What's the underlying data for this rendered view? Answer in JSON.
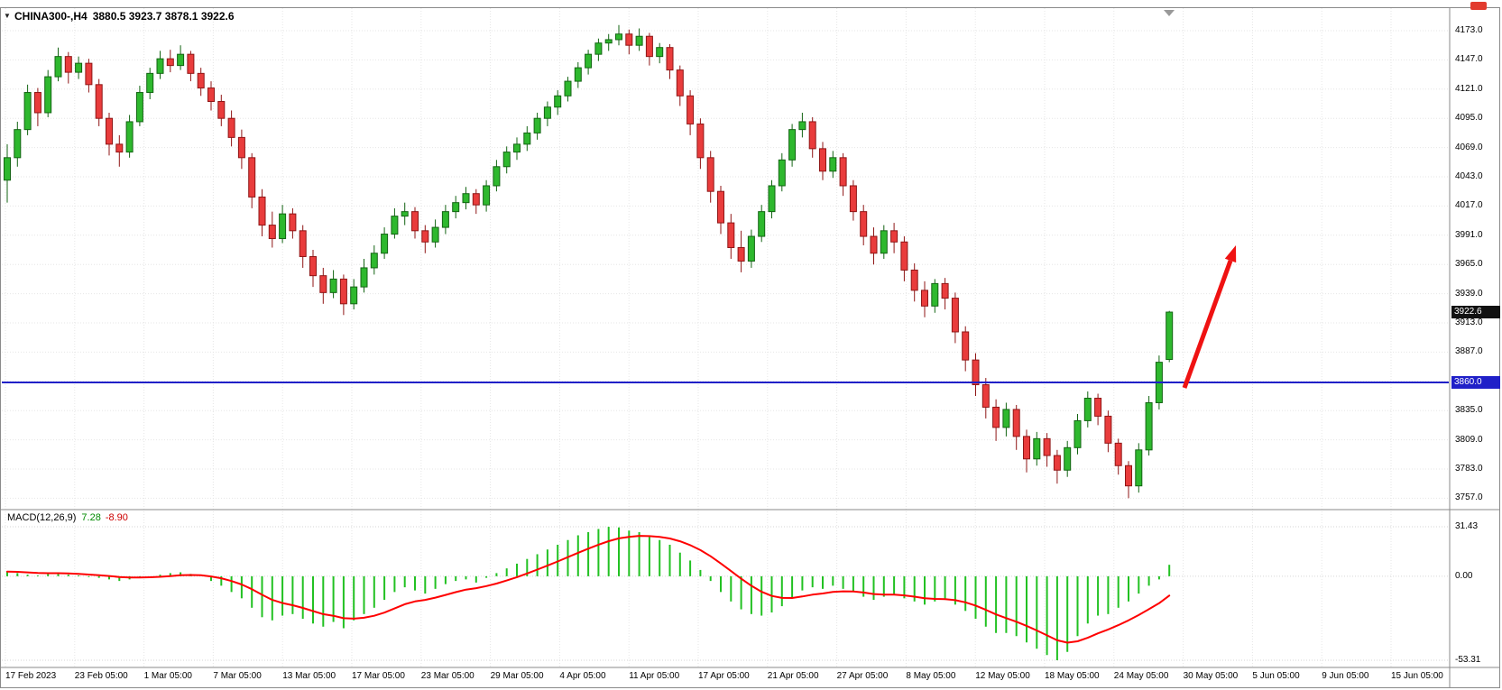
{
  "header": {
    "symbol_period": "CHINA300-,H4",
    "ohlc": "3880.5 3923.7 3878.1 3922.6"
  },
  "price_axis": {
    "labels": [
      "4173.0",
      "4147.0",
      "4121.0",
      "4095.0",
      "4069.0",
      "4043.0",
      "4017.0",
      "3991.0",
      "3965.0",
      "3939.0",
      "3913.0",
      "3887.0",
      "3835.0",
      "3809.0",
      "3783.0",
      "3757.0"
    ]
  },
  "time_axis": {
    "labels": [
      "17 Feb 2023",
      "23 Feb 05:00",
      "1 Mar 05:00",
      "7 Mar 05:00",
      "13 Mar 05:00",
      "17 Mar 05:00",
      "23 Mar 05:00",
      "29 Mar 05:00",
      "4 Apr 05:00",
      "11 Apr 05:00",
      "17 Apr 05:00",
      "21 Apr 05:00",
      "27 Apr 05:00",
      "8 May 05:00",
      "12 May 05:00",
      "18 May 05:00",
      "24 May 05:00",
      "30 May 05:00",
      "5 Jun 05:00",
      "9 Jun 05:00",
      "15 Jun 05:00"
    ]
  },
  "chart_data": {
    "type": "candlestick",
    "symbol": "CHINA300-",
    "timeframe": "H4",
    "title": "CHINA300-,H4",
    "ohlc_current": {
      "open": 3880.5,
      "high": 3923.7,
      "low": 3878.1,
      "close": 3922.6
    },
    "current_price_label": "3922.6",
    "support_line": {
      "price": 3860.0,
      "label": "3860.0",
      "color": "#2020c8"
    },
    "ylim": [
      3757.0,
      4173.0
    ],
    "y_step": 26.0,
    "candles": [
      [
        4040,
        4072,
        4020,
        4060
      ],
      [
        4060,
        4092,
        4052,
        4085
      ],
      [
        4085,
        4125,
        4080,
        4118
      ],
      [
        4118,
        4122,
        4088,
        4100
      ],
      [
        4100,
        4138,
        4096,
        4132
      ],
      [
        4132,
        4158,
        4128,
        4150
      ],
      [
        4150,
        4154,
        4126,
        4136
      ],
      [
        4136,
        4150,
        4130,
        4144
      ],
      [
        4144,
        4148,
        4118,
        4125
      ],
      [
        4125,
        4130,
        4088,
        4095
      ],
      [
        4095,
        4100,
        4062,
        4072
      ],
      [
        4072,
        4080,
        4052,
        4065
      ],
      [
        4065,
        4098,
        4060,
        4092
      ],
      [
        4092,
        4124,
        4088,
        4118
      ],
      [
        4118,
        4140,
        4112,
        4135
      ],
      [
        4135,
        4155,
        4130,
        4148
      ],
      [
        4148,
        4156,
        4136,
        4142
      ],
      [
        4142,
        4160,
        4138,
        4152
      ],
      [
        4152,
        4155,
        4128,
        4135
      ],
      [
        4135,
        4140,
        4115,
        4122
      ],
      [
        4122,
        4128,
        4102,
        4110
      ],
      [
        4110,
        4116,
        4088,
        4095
      ],
      [
        4095,
        4102,
        4070,
        4078
      ],
      [
        4078,
        4085,
        4050,
        4060
      ],
      [
        4060,
        4064,
        4015,
        4025
      ],
      [
        4025,
        4032,
        3990,
        4000
      ],
      [
        4000,
        4012,
        3980,
        3988
      ],
      [
        3988,
        4018,
        3984,
        4010
      ],
      [
        4010,
        4015,
        3988,
        3995
      ],
      [
        3995,
        4000,
        3962,
        3972
      ],
      [
        3972,
        3978,
        3945,
        3955
      ],
      [
        3955,
        3962,
        3930,
        3940
      ],
      [
        3940,
        3960,
        3935,
        3952
      ],
      [
        3952,
        3956,
        3920,
        3930
      ],
      [
        3930,
        3952,
        3925,
        3945
      ],
      [
        3945,
        3970,
        3940,
        3962
      ],
      [
        3962,
        3982,
        3956,
        3975
      ],
      [
        3975,
        3998,
        3970,
        3992
      ],
      [
        3992,
        4015,
        3988,
        4008
      ],
      [
        4008,
        4020,
        4000,
        4012
      ],
      [
        4012,
        4016,
        3988,
        3995
      ],
      [
        3995,
        4000,
        3975,
        3985
      ],
      [
        3985,
        4005,
        3980,
        3998
      ],
      [
        3998,
        4018,
        3992,
        4012
      ],
      [
        4012,
        4026,
        4006,
        4020
      ],
      [
        4020,
        4034,
        4014,
        4028
      ],
      [
        4028,
        4032,
        4010,
        4018
      ],
      [
        4018,
        4040,
        4012,
        4035
      ],
      [
        4035,
        4058,
        4030,
        4052
      ],
      [
        4052,
        4070,
        4046,
        4065
      ],
      [
        4065,
        4078,
        4058,
        4072
      ],
      [
        4072,
        4088,
        4066,
        4082
      ],
      [
        4082,
        4100,
        4076,
        4095
      ],
      [
        4095,
        4110,
        4088,
        4105
      ],
      [
        4105,
        4120,
        4098,
        4115
      ],
      [
        4115,
        4132,
        4110,
        4128
      ],
      [
        4128,
        4145,
        4122,
        4140
      ],
      [
        4140,
        4156,
        4134,
        4152
      ],
      [
        4152,
        4166,
        4146,
        4162
      ],
      [
        4162,
        4170,
        4155,
        4165
      ],
      [
        4165,
        4178,
        4160,
        4170
      ],
      [
        4170,
        4174,
        4152,
        4160
      ],
      [
        4160,
        4175,
        4155,
        4168
      ],
      [
        4168,
        4171,
        4142,
        4150
      ],
      [
        4150,
        4162,
        4144,
        4158
      ],
      [
        4158,
        4161,
        4130,
        4138
      ],
      [
        4138,
        4142,
        4106,
        4115
      ],
      [
        4115,
        4120,
        4080,
        4090
      ],
      [
        4090,
        4095,
        4050,
        4060
      ],
      [
        4060,
        4066,
        4020,
        4030
      ],
      [
        4030,
        4035,
        3992,
        4002
      ],
      [
        4002,
        4010,
        3970,
        3980
      ],
      [
        3980,
        3995,
        3958,
        3968
      ],
      [
        3968,
        3996,
        3962,
        3990
      ],
      [
        3990,
        4018,
        3985,
        4012
      ],
      [
        4012,
        4040,
        4006,
        4035
      ],
      [
        4035,
        4064,
        4030,
        4058
      ],
      [
        4058,
        4090,
        4052,
        4085
      ],
      [
        4085,
        4100,
        4078,
        4092
      ],
      [
        4092,
        4096,
        4060,
        4068
      ],
      [
        4068,
        4074,
        4040,
        4048
      ],
      [
        4048,
        4066,
        4042,
        4060
      ],
      [
        4060,
        4064,
        4026,
        4035
      ],
      [
        4035,
        4040,
        4004,
        4012
      ],
      [
        4012,
        4018,
        3982,
        3990
      ],
      [
        3990,
        3998,
        3965,
        3975
      ],
      [
        3975,
        4000,
        3970,
        3995
      ],
      [
        3995,
        4002,
        3975,
        3985
      ],
      [
        3985,
        3990,
        3950,
        3960
      ],
      [
        3960,
        3966,
        3932,
        3942
      ],
      [
        3942,
        3950,
        3918,
        3928
      ],
      [
        3928,
        3952,
        3922,
        3948
      ],
      [
        3948,
        3953,
        3925,
        3935
      ],
      [
        3935,
        3940,
        3895,
        3905
      ],
      [
        3905,
        3910,
        3870,
        3880
      ],
      [
        3880,
        3886,
        3848,
        3858
      ],
      [
        3858,
        3864,
        3828,
        3838
      ],
      [
        3838,
        3845,
        3808,
        3820
      ],
      [
        3820,
        3842,
        3812,
        3836
      ],
      [
        3836,
        3840,
        3800,
        3812
      ],
      [
        3812,
        3818,
        3780,
        3792
      ],
      [
        3792,
        3816,
        3786,
        3810
      ],
      [
        3810,
        3815,
        3785,
        3795
      ],
      [
        3795,
        3800,
        3770,
        3782
      ],
      [
        3782,
        3808,
        3776,
        3802
      ],
      [
        3802,
        3832,
        3796,
        3826
      ],
      [
        3826,
        3852,
        3820,
        3846
      ],
      [
        3846,
        3850,
        3822,
        3830
      ],
      [
        3830,
        3835,
        3798,
        3806
      ],
      [
        3806,
        3810,
        3778,
        3786
      ],
      [
        3786,
        3790,
        3757,
        3768
      ],
      [
        3768,
        3806,
        3762,
        3800
      ],
      [
        3800,
        3848,
        3795,
        3842
      ],
      [
        3842,
        3884,
        3836,
        3878
      ],
      [
        3880.5,
        3923.7,
        3878.1,
        3922.6
      ]
    ],
    "macd": {
      "title": "MACD(12,26,9)",
      "params": [
        12,
        26,
        9
      ],
      "value_main": "7.28",
      "value_signal": "-8.90",
      "axis_max": 31.43,
      "axis_min": -53.31,
      "axis_labels": [
        "31.43",
        "0.00",
        "-53.31"
      ],
      "main": [
        3,
        2,
        1,
        0.5,
        1.5,
        2,
        1,
        0.5,
        -0.5,
        -1,
        -2,
        -3,
        -2,
        -1,
        0,
        1,
        2,
        2.5,
        1.5,
        0,
        -3,
        -6,
        -10,
        -14,
        -20,
        -26,
        -28,
        -25,
        -24,
        -27,
        -30,
        -32,
        -29,
        -33,
        -28,
        -24,
        -20,
        -15,
        -10,
        -7,
        -9,
        -11,
        -8,
        -5,
        -3,
        -2,
        -4,
        -1,
        2,
        5,
        8,
        11,
        14,
        17,
        20,
        23,
        26,
        28,
        30,
        31.4,
        31,
        29,
        28,
        25,
        23,
        20,
        15,
        10,
        4,
        -3,
        -10,
        -16,
        -21,
        -24,
        -25,
        -23,
        -19,
        -14,
        -9,
        -7,
        -8,
        -6,
        -8,
        -10,
        -13,
        -15,
        -13,
        -12,
        -14,
        -16,
        -18,
        -16,
        -15,
        -18,
        -22,
        -27,
        -32,
        -36,
        -36,
        -38,
        -42,
        -46,
        -50,
        -53.3,
        -48,
        -38,
        -30,
        -25,
        -24,
        -20,
        -16,
        -11,
        -6,
        -2,
        7.28
      ]
    },
    "annotations": [
      {
        "type": "arrow-up",
        "color": "#ef1212"
      }
    ]
  },
  "colors": {
    "background": "#ffffff",
    "grid": "#e6e6e6",
    "bull_fill": "#2eb82e",
    "bull_stroke": "#136413",
    "bear_fill": "#e93c3c",
    "bear_stroke": "#8f1616",
    "macd_hist": "#22c122",
    "macd_signal": "#fe0000",
    "separator": "#8a8a8a",
    "badge_black": "#111111",
    "badge_blue": "#2020c8",
    "arrow": "#ef1212"
  }
}
